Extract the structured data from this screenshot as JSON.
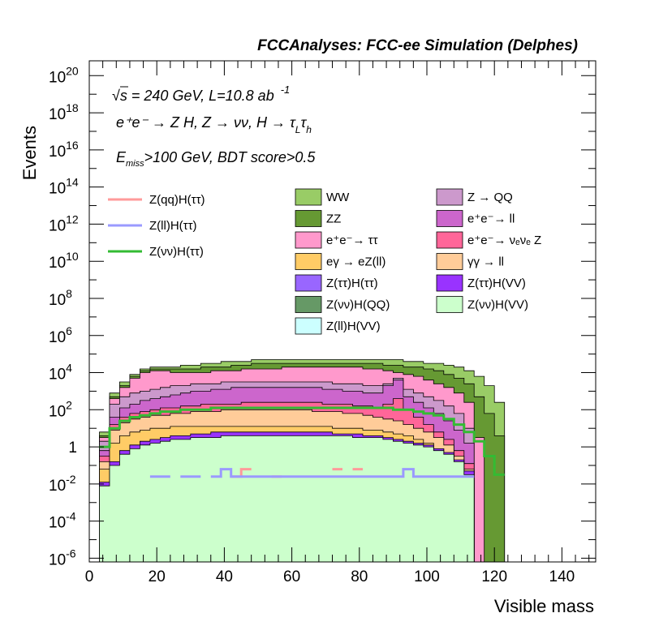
{
  "chart_data": {
    "type": "area",
    "title": "FCCAnalyses: FCC-ee Simulation (Delphes)",
    "xlabel": "Visible mass",
    "ylabel": "Events",
    "xlim": [
      0,
      150
    ],
    "ylim_log10": [
      -6.2,
      20.8
    ],
    "log_y": true,
    "x_ticks": [
      "0",
      "20",
      "40",
      "60",
      "80",
      "100",
      "120",
      "140"
    ],
    "y_ticks": [
      {
        "base": "10",
        "exp": "-6",
        "log10": -6
      },
      {
        "base": "10",
        "exp": "-4",
        "log10": -4
      },
      {
        "base": "10",
        "exp": "-2",
        "log10": -2
      },
      {
        "base": "1",
        "exp": "",
        "log10": 0
      },
      {
        "base": "10",
        "exp": "2",
        "log10": 2
      },
      {
        "base": "10",
        "exp": "4",
        "log10": 4
      },
      {
        "base": "10",
        "exp": "6",
        "log10": 6
      },
      {
        "base": "10",
        "exp": "8",
        "log10": 8
      },
      {
        "base": "10",
        "exp": "10",
        "log10": 10
      },
      {
        "base": "10",
        "exp": "12",
        "log10": 12
      },
      {
        "base": "10",
        "exp": "14",
        "log10": 14
      },
      {
        "base": "10",
        "exp": "16",
        "log10": 16
      },
      {
        "base": "10",
        "exp": "18",
        "log10": 18
      },
      {
        "base": "10",
        "exp": "20",
        "log10": 20
      }
    ],
    "annotations": {
      "sqrt": "√s",
      "energy": " = 240 GeV, L=10.8 ab",
      "lumi_exp": "-1",
      "process": "e⁺e⁻ → Z H, Z → νν, H → τ",
      "tau_sub_L": "L",
      "tau2": "τ",
      "tau_sub_h": "h",
      "cut_E": "E",
      "cut_sub": "miss",
      "cut_rest": ">100 GeV, BDT score>0.5"
    },
    "legend_lines": [
      {
        "name": "Z(qq)H(ττ)",
        "color": "#ff9a9a"
      },
      {
        "name": "Z(ll)H(ττ)",
        "color": "#9a9aff"
      },
      {
        "name": "Z(νν)H(ττ)",
        "color": "#33bb33"
      }
    ],
    "legend_boxes": [
      {
        "name": "WW",
        "color": "#99cc66"
      },
      {
        "name": "Z → QQ",
        "color": "#cc99cc"
      },
      {
        "name": "ZZ",
        "color": "#669933"
      },
      {
        "name": "e⁺e⁻→ ll",
        "color": "#cc66cc"
      },
      {
        "name": "e⁺e⁻→ ττ",
        "color": "#ff99cc"
      },
      {
        "name": "e⁺e⁻→ νₑνₑ Z",
        "color": "#ff6699"
      },
      {
        "name": "eγ → eZ(ll)",
        "color": "#ffcc66"
      },
      {
        "name": "γγ → ll",
        "color": "#ffcc99"
      },
      {
        "name": "Z(ττ)H(ττ)",
        "color": "#9966ff"
      },
      {
        "name": "Z(ττ)H(VV)",
        "color": "#9933ff"
      },
      {
        "name": "Z(νν)H(QQ)",
        "color": "#669966"
      },
      {
        "name": "Z(νν)H(VV)",
        "color": "#ccffcc"
      },
      {
        "name": "Z(ll)H(VV)",
        "color": "#ccffff"
      }
    ],
    "x_bins": [
      1.5,
      4.5,
      7.5,
      10.5,
      13.5,
      16.5,
      19.5,
      22.5,
      25.5,
      28.5,
      31.5,
      34.5,
      37.5,
      40.5,
      43.5,
      46.5,
      49.5,
      52.5,
      55.5,
      58.5,
      61.5,
      64.5,
      67.5,
      70.5,
      73.5,
      76.5,
      79.5,
      82.5,
      85.5,
      88.5,
      91.5,
      94.5,
      97.5,
      100.5,
      103.5,
      106.5,
      109.5,
      112.5,
      115.5,
      118.5,
      121.5,
      124.5
    ],
    "stack_log10_tops": [
      {
        "name": "Z(νν)H(VV)",
        "values": [
          -6.2,
          -2.1,
          -1.0,
          -0.4,
          -0.1,
          0.1,
          0.2,
          0.3,
          0.4,
          0.4,
          0.5,
          0.5,
          0.5,
          0.6,
          0.6,
          0.6,
          0.6,
          0.6,
          0.6,
          0.6,
          0.6,
          0.6,
          0.6,
          0.6,
          0.6,
          0.6,
          0.5,
          0.5,
          0.5,
          0.4,
          0.3,
          0.2,
          0.1,
          0.0,
          -0.2,
          -0.4,
          -0.8,
          -1.5,
          -6.2,
          -6.2,
          -6.2,
          -6.2
        ]
      },
      {
        "name": "Z(ττ)H(VV)",
        "values": [
          -6.2,
          -1.9,
          -0.8,
          -0.2,
          0.1,
          0.3,
          0.4,
          0.5,
          0.6,
          0.6,
          0.7,
          0.7,
          0.8,
          0.8,
          0.8,
          0.8,
          0.8,
          0.8,
          0.8,
          0.8,
          0.8,
          0.8,
          0.8,
          0.8,
          0.7,
          0.7,
          0.7,
          0.6,
          0.6,
          0.5,
          0.4,
          0.3,
          0.2,
          0.1,
          -0.1,
          -0.3,
          -0.7,
          -1.3,
          -6.2,
          -6.2,
          -6.2,
          -6.2
        ]
      },
      {
        "name": "eγ → eZ(ll)",
        "values": [
          -6.2,
          -1.2,
          0.2,
          0.6,
          0.8,
          0.9,
          1.0,
          1.0,
          1.1,
          1.1,
          1.1,
          1.1,
          1.1,
          1.1,
          1.1,
          1.1,
          1.1,
          1.1,
          1.1,
          1.1,
          1.1,
          1.1,
          1.1,
          1.1,
          1.0,
          1.0,
          1.0,
          0.9,
          0.9,
          0.8,
          0.7,
          0.6,
          0.4,
          0.2,
          -0.1,
          -0.5,
          -1.2,
          -1.8,
          -6.2,
          -6.2,
          -6.2,
          -6.2
        ]
      },
      {
        "name": "γγ → ll",
        "values": [
          -6.2,
          -0.8,
          0.9,
          1.3,
          1.5,
          1.6,
          1.7,
          1.7,
          1.8,
          1.8,
          1.9,
          1.9,
          1.9,
          2.0,
          2.0,
          2.0,
          2.0,
          2.0,
          2.0,
          2.0,
          2.0,
          2.0,
          1.9,
          1.9,
          1.9,
          1.8,
          1.8,
          1.7,
          1.6,
          1.5,
          1.4,
          1.2,
          1.0,
          0.8,
          0.5,
          0.1,
          -0.5,
          -1.2,
          -6.2,
          -6.2,
          -6.2,
          -6.2
        ]
      },
      {
        "name": "e⁺e⁻→ νₑνₑ Z",
        "values": [
          -6.2,
          -0.5,
          1.2,
          1.6,
          1.8,
          1.9,
          2.0,
          2.1,
          2.1,
          2.2,
          2.2,
          2.3,
          2.3,
          2.3,
          2.3,
          2.4,
          2.4,
          2.4,
          2.4,
          2.4,
          2.4,
          2.4,
          2.4,
          2.3,
          2.3,
          2.3,
          2.2,
          2.2,
          2.1,
          2.3,
          2.6,
          2.0,
          1.6,
          1.2,
          0.8,
          0.4,
          -0.2,
          -0.9,
          -6.2,
          -6.2,
          -6.2,
          -6.2
        ]
      },
      {
        "name": "e⁺e⁻→ ll",
        "values": [
          -6.2,
          -0.2,
          1.6,
          2.1,
          2.3,
          2.5,
          2.6,
          2.7,
          2.8,
          2.9,
          3.0,
          3.0,
          3.1,
          3.1,
          3.2,
          3.2,
          3.2,
          3.2,
          3.2,
          3.2,
          3.2,
          3.2,
          3.2,
          3.1,
          3.1,
          3.0,
          3.0,
          2.9,
          2.9,
          3.3,
          3.6,
          2.7,
          2.4,
          2.1,
          1.8,
          1.4,
          0.9,
          0.2,
          -6.2,
          -6.2,
          -6.2,
          -6.2
        ]
      },
      {
        "name": "Z → QQ",
        "values": [
          -6.2,
          0.3,
          2.3,
          2.7,
          2.9,
          3.0,
          3.1,
          3.2,
          3.3,
          3.3,
          3.4,
          3.4,
          3.4,
          3.5,
          3.5,
          3.5,
          3.5,
          3.5,
          3.5,
          3.5,
          3.5,
          3.5,
          3.5,
          3.5,
          3.4,
          3.4,
          3.4,
          3.3,
          3.3,
          3.4,
          3.7,
          3.1,
          2.9,
          2.7,
          2.5,
          2.2,
          1.8,
          1.0,
          -6.2,
          -6.2,
          -6.2,
          -6.2
        ]
      },
      {
        "name": "e⁺e⁻→ ττ",
        "values": [
          -6.2,
          0.5,
          2.6,
          3.2,
          3.7,
          4.0,
          4.1,
          4.1,
          4.0,
          4.0,
          4.0,
          4.0,
          4.1,
          4.1,
          4.1,
          4.2,
          4.2,
          4.2,
          4.2,
          4.3,
          4.3,
          4.3,
          4.3,
          4.3,
          4.3,
          4.3,
          4.3,
          4.2,
          4.2,
          4.1,
          4.0,
          3.9,
          3.8,
          3.6,
          3.4,
          3.2,
          2.9,
          2.4,
          0.5,
          -6.2,
          -6.2,
          -6.2
        ]
      },
      {
        "name": "ZZ",
        "values": [
          -6.2,
          0.6,
          2.7,
          3.3,
          3.8,
          4.1,
          4.2,
          4.2,
          4.2,
          4.2,
          4.2,
          4.3,
          4.3,
          4.3,
          4.4,
          4.4,
          4.5,
          4.5,
          4.5,
          4.5,
          4.5,
          4.5,
          4.5,
          4.5,
          4.5,
          4.5,
          4.5,
          4.5,
          4.5,
          4.4,
          4.4,
          4.3,
          4.3,
          4.2,
          4.1,
          3.9,
          3.7,
          3.4,
          2.7,
          1.8,
          0.6,
          -6.2
        ]
      },
      {
        "name": "WW",
        "values": [
          -6.2,
          0.8,
          2.9,
          3.5,
          3.9,
          4.2,
          4.3,
          4.3,
          4.3,
          4.4,
          4.4,
          4.5,
          4.5,
          4.6,
          4.6,
          4.6,
          4.7,
          4.7,
          4.7,
          4.7,
          4.7,
          4.7,
          4.7,
          4.7,
          4.7,
          4.7,
          4.7,
          4.7,
          4.7,
          4.7,
          4.7,
          4.6,
          4.6,
          4.5,
          4.5,
          4.4,
          4.3,
          4.1,
          3.8,
          3.3,
          2.4,
          -6.2
        ]
      }
    ],
    "line_series": [
      {
        "name": "Z(νν)H(ττ)",
        "color": "#33bb33",
        "values": [
          -6.2,
          0.0,
          1.0,
          1.4,
          1.6,
          1.7,
          1.8,
          1.9,
          1.9,
          2.0,
          2.0,
          2.0,
          2.1,
          2.1,
          2.1,
          2.1,
          2.1,
          2.1,
          2.1,
          2.1,
          2.1,
          2.1,
          2.1,
          2.1,
          2.1,
          2.1,
          2.1,
          2.1,
          2.1,
          2.1,
          2.0,
          2.0,
          1.9,
          1.8,
          1.7,
          1.5,
          1.2,
          0.8,
          0.3,
          -0.5,
          -1.5,
          -6.2
        ]
      },
      {
        "name": "Z(ll)H(ττ)",
        "color": "#9a9aff",
        "values": [
          -6.2,
          -6.2,
          -6.2,
          -6.2,
          -6.2,
          -6.2,
          -1.6,
          -1.6,
          -6.2,
          -1.6,
          -1.6,
          -6.2,
          -1.6,
          -1.2,
          -1.6,
          -1.6,
          -1.6,
          -1.6,
          -1.6,
          -1.6,
          -1.6,
          -1.6,
          -1.6,
          -1.6,
          -1.6,
          -1.6,
          -1.6,
          -1.6,
          -1.6,
          -1.6,
          -1.6,
          -1.2,
          -1.6,
          -1.6,
          -1.6,
          -1.6,
          -1.6,
          -1.6,
          -6.2,
          -6.2,
          -6.2,
          -6.2
        ]
      },
      {
        "name": "Z(qq)H(ττ)",
        "color": "#ff9a9a",
        "values": [
          -6.2,
          -6.2,
          -6.2,
          -6.2,
          -6.2,
          -6.2,
          -6.2,
          -6.2,
          -6.2,
          -6.2,
          -6.2,
          -6.2,
          -6.2,
          -6.2,
          -1.6,
          -1.2,
          -6.2,
          -6.2,
          -1.6,
          -6.2,
          -6.2,
          -6.2,
          -6.2,
          -6.2,
          -1.2,
          -6.2,
          -1.2,
          -6.2,
          -6.2,
          -6.2,
          -6.2,
          -6.2,
          -6.2,
          -6.2,
          -6.2,
          -6.2,
          -6.2,
          -6.2,
          -6.2,
          -6.2,
          -6.2,
          -6.2
        ]
      }
    ]
  }
}
